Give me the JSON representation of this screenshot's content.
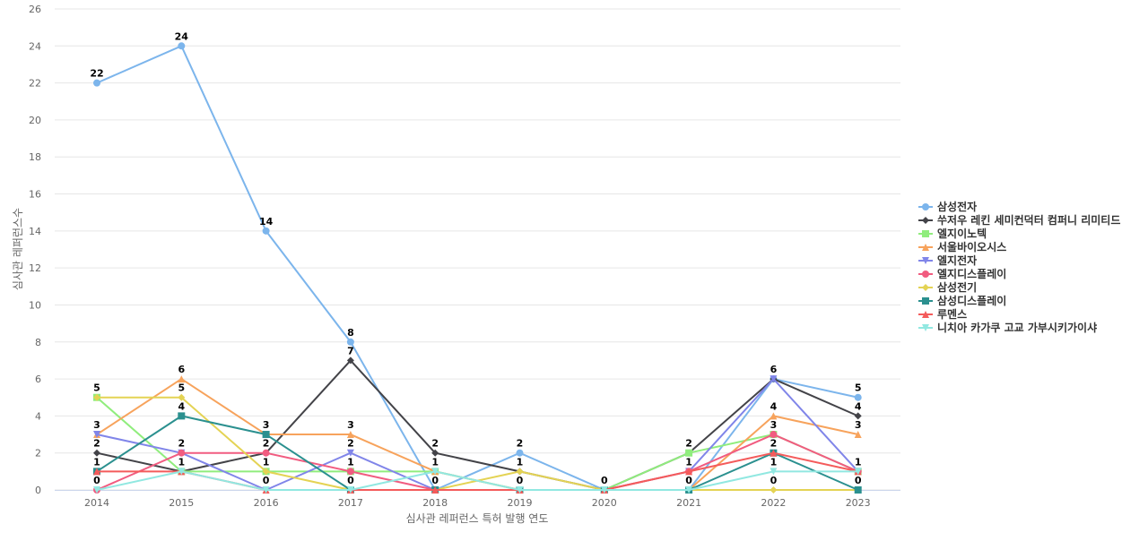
{
  "chart_data": {
    "type": "line",
    "xlabel": "심사관 레퍼런스 특허 발행 연도",
    "ylabel": "심사관 레퍼런스수",
    "ylim": [
      0,
      26
    ],
    "y_ticks": [
      0,
      2,
      4,
      6,
      8,
      10,
      12,
      14,
      16,
      18,
      20,
      22,
      24,
      26
    ],
    "x": [
      "2014",
      "2015",
      "2016",
      "2017",
      "2018",
      "2019",
      "2020",
      "2021",
      "2022",
      "2023"
    ],
    "grid": true,
    "legend_position": "right",
    "series": [
      {
        "name": "삼성전자",
        "color": "#7cb5ec",
        "marker": "circle",
        "values": [
          22,
          24,
          14,
          8,
          0,
          2,
          0,
          0,
          6,
          5
        ]
      },
      {
        "name": "쑤저우 레킨 세미컨덕터 컴퍼니 리미티드",
        "color": "#434348",
        "marker": "diamond",
        "values": [
          2,
          1,
          2,
          7,
          2,
          1,
          0,
          2,
          6,
          4
        ]
      },
      {
        "name": "엘지이노텍",
        "color": "#90ed7d",
        "marker": "square",
        "values": [
          5,
          1,
          1,
          1,
          1,
          0,
          0,
          2,
          3,
          1
        ]
      },
      {
        "name": "서울바이오시스",
        "color": "#f7a35c",
        "marker": "triangle",
        "values": [
          3,
          6,
          3,
          3,
          1,
          0,
          0,
          0,
          4,
          3
        ]
      },
      {
        "name": "엘지전자",
        "color": "#8085e9",
        "marker": "triangle-down",
        "values": [
          3,
          2,
          0,
          2,
          0,
          0,
          0,
          1,
          6,
          1
        ]
      },
      {
        "name": "엘지디스플레이",
        "color": "#f15c80",
        "marker": "circle",
        "values": [
          0,
          2,
          2,
          1,
          0,
          0,
          0,
          1,
          3,
          1
        ]
      },
      {
        "name": "삼성전기",
        "color": "#e4d354",
        "marker": "diamond",
        "values": [
          5,
          5,
          1,
          0,
          0,
          1,
          0,
          0,
          0,
          0
        ]
      },
      {
        "name": "삼성디스플레이",
        "color": "#2b908f",
        "marker": "square",
        "values": [
          1,
          4,
          3,
          0,
          0,
          0,
          0,
          0,
          2,
          0
        ]
      },
      {
        "name": "루멘스",
        "color": "#f45b5b",
        "marker": "triangle",
        "values": [
          1,
          1,
          0,
          0,
          0,
          0,
          0,
          1,
          2,
          1
        ]
      },
      {
        "name": "니치아 카가쿠 고교 가부시키가이샤",
        "color": "#91e8e1",
        "marker": "triangle-down",
        "values": [
          0,
          1,
          0,
          0,
          1,
          0,
          0,
          0,
          1,
          1
        ]
      }
    ],
    "data_labels": [
      {
        "year": "2014",
        "labels": [
          22,
          5,
          3,
          2,
          1,
          0
        ]
      },
      {
        "year": "2015",
        "labels": [
          24,
          6,
          5,
          4,
          2,
          1
        ]
      },
      {
        "year": "2016",
        "labels": [
          14,
          3,
          2,
          1,
          0
        ]
      },
      {
        "year": "2017",
        "labels": [
          8,
          7,
          3,
          2,
          1,
          0
        ]
      },
      {
        "year": "2018",
        "labels": [
          2,
          1,
          0
        ]
      },
      {
        "year": "2019",
        "labels": [
          2,
          1,
          0
        ]
      },
      {
        "year": "2020",
        "labels": [
          0
        ]
      },
      {
        "year": "2021",
        "labels": [
          2,
          1,
          0
        ]
      },
      {
        "year": "2022",
        "labels": [
          6,
          4,
          3,
          2,
          1,
          0
        ]
      },
      {
        "year": "2023",
        "labels": [
          5,
          4,
          3,
          1,
          0
        ]
      }
    ]
  }
}
